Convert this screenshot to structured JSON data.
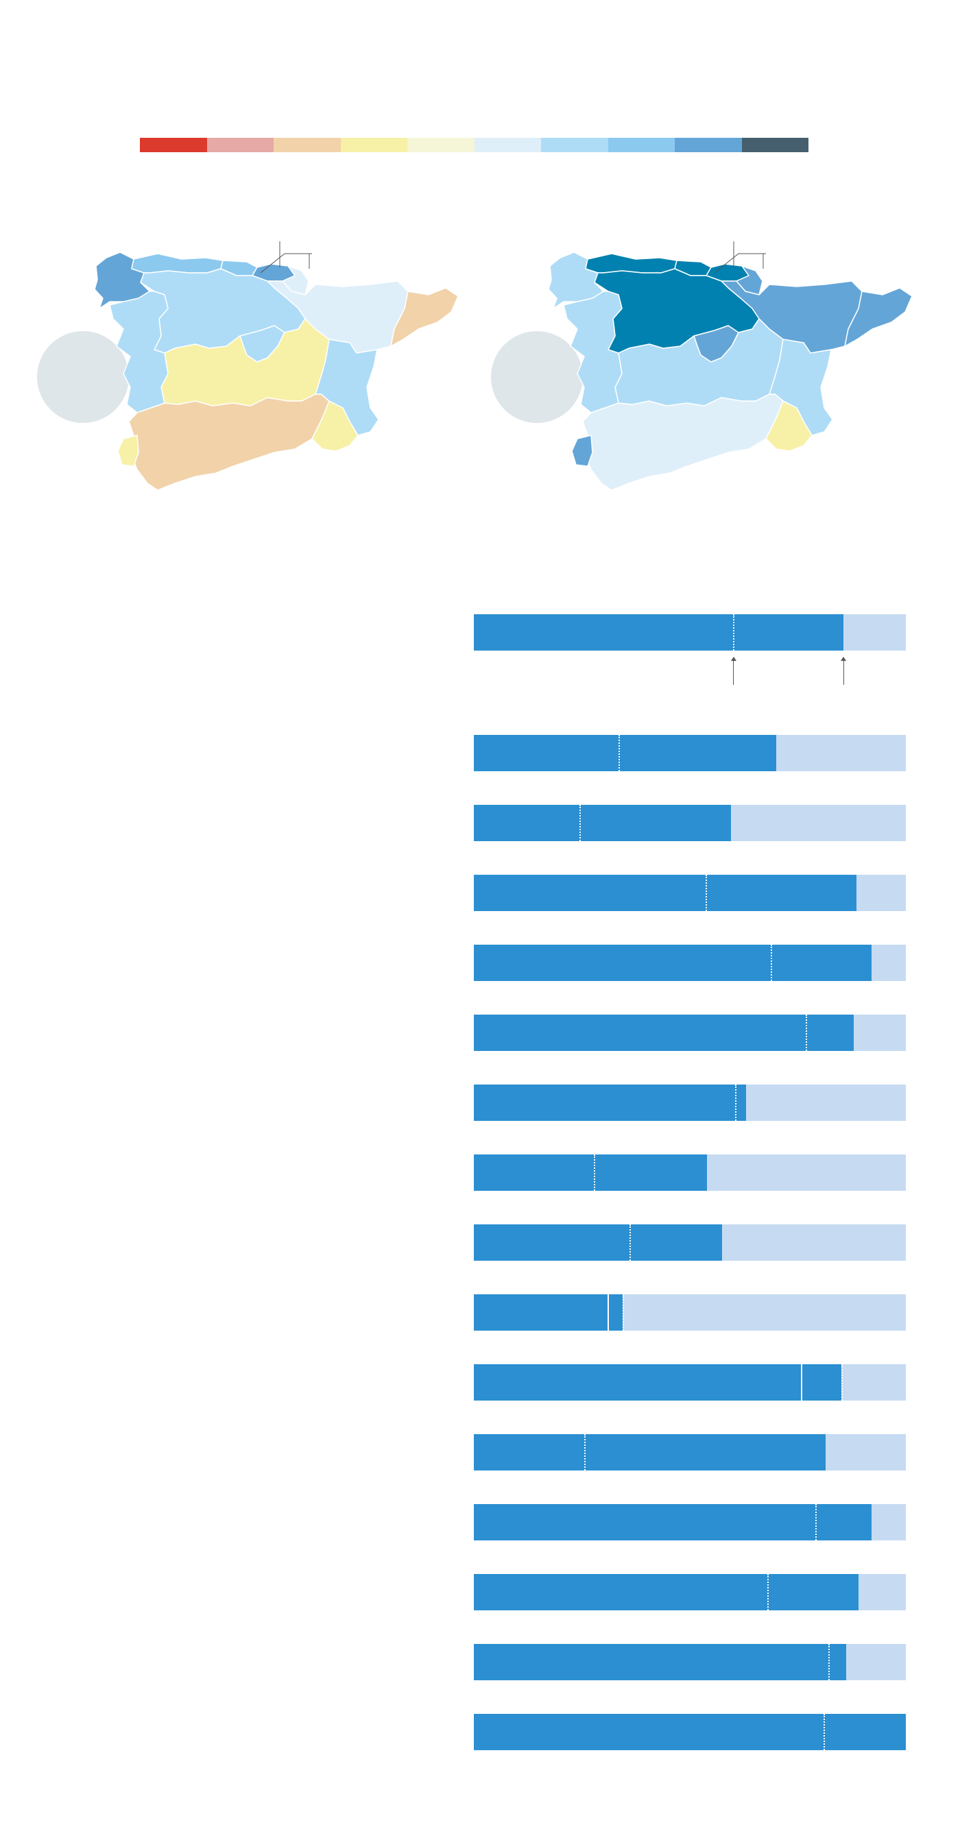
{
  "legend": {
    "colors": [
      "#dc3a2c",
      "#e6a9a6",
      "#f1d2a9",
      "#f7f0a7",
      "#f5f5d8",
      "#dfeff9",
      "#aedcf6",
      "#8cc9ef",
      "#64a5d7",
      "#465f6e"
    ]
  },
  "maps": [
    {
      "regions": [
        {
          "name": "galicia",
          "color": "#64a5d7"
        },
        {
          "name": "asturias",
          "color": "#8cc9ef"
        },
        {
          "name": "cantabria",
          "color": "#8cc9ef"
        },
        {
          "name": "basque-country",
          "color": "#64a5d7"
        },
        {
          "name": "navarra",
          "color": "#dfeff9"
        },
        {
          "name": "aragon",
          "color": "#dfeff9"
        },
        {
          "name": "catalonia",
          "color": "#f1d2a9"
        },
        {
          "name": "castilla-leon",
          "color": "#aedcf6"
        },
        {
          "name": "madrid",
          "color": "#aedcf6"
        },
        {
          "name": "castilla-la-mancha",
          "color": "#f7f0a7"
        },
        {
          "name": "valencia",
          "color": "#aedcf6"
        },
        {
          "name": "extremadura",
          "color": "#aedcf6"
        },
        {
          "name": "andalusia",
          "color": "#f1d2a9"
        },
        {
          "name": "murcia",
          "color": "#f7f0a7"
        },
        {
          "name": "portugal-south",
          "color": "#f7f0a7"
        }
      ]
    },
    {
      "regions": [
        {
          "name": "galicia",
          "color": "#aedcf6"
        },
        {
          "name": "asturias",
          "color": "#0081b0"
        },
        {
          "name": "cantabria",
          "color": "#0081b0"
        },
        {
          "name": "basque-country",
          "color": "#0081b0"
        },
        {
          "name": "navarra",
          "color": "#64a5d7"
        },
        {
          "name": "aragon",
          "color": "#64a5d7"
        },
        {
          "name": "catalonia",
          "color": "#64a5d7"
        },
        {
          "name": "castilla-leon",
          "color": "#0081b0"
        },
        {
          "name": "madrid",
          "color": "#64a5d7"
        },
        {
          "name": "castilla-la-mancha",
          "color": "#aedcf6"
        },
        {
          "name": "valencia",
          "color": "#aedcf6"
        },
        {
          "name": "extremadura",
          "color": "#aedcf6"
        },
        {
          "name": "andalusia",
          "color": "#dfeff9"
        },
        {
          "name": "murcia",
          "color": "#f7f0a7"
        },
        {
          "name": "portugal-south",
          "color": "#64a5d7"
        }
      ]
    }
  ],
  "chart_data": {
    "type": "bar",
    "bars": [
      {
        "fill": 0.855,
        "reference": 0.6
      },
      {
        "fill": 0.7,
        "reference": 0.335
      },
      {
        "fill": 0.595,
        "reference": 0.245
      },
      {
        "fill": 0.885,
        "reference": 0.537
      },
      {
        "fill": 0.92,
        "reference": 0.687
      },
      {
        "fill": 0.88,
        "reference": 0.768
      },
      {
        "fill": 0.63,
        "reference": 0.605
      },
      {
        "fill": 0.54,
        "reference": 0.278
      },
      {
        "fill": 0.575,
        "reference": 0.36
      },
      {
        "fill": 0.345,
        "reference": 0.345,
        "split": 0.31
      },
      {
        "fill": 0.85,
        "reference": 0.85,
        "split": 0.757
      },
      {
        "fill": 0.815,
        "reference": 0.255
      },
      {
        "fill": 0.92,
        "reference": 0.79
      },
      {
        "fill": 0.89,
        "reference": 0.68
      },
      {
        "fill": 0.862,
        "reference": 0.82
      },
      {
        "fill": 1.0,
        "reference": 0.81
      }
    ]
  }
}
